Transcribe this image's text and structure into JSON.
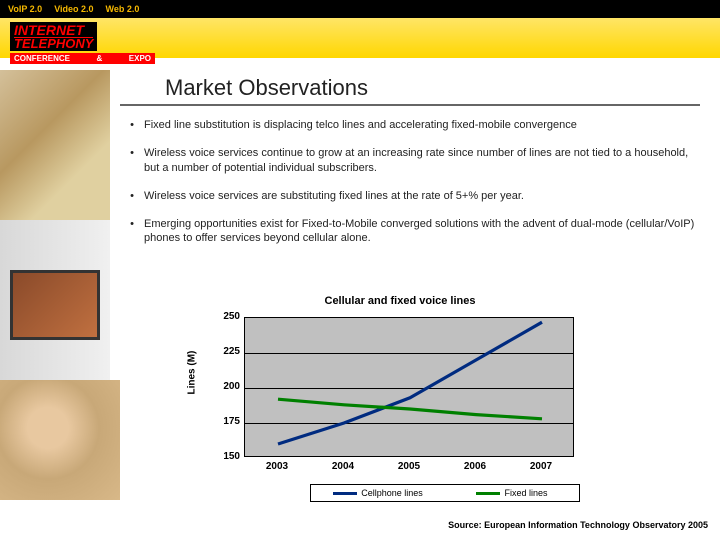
{
  "topbar": {
    "items": [
      "VoIP 2.0",
      "Video 2.0",
      "Web 2.0"
    ]
  },
  "logo": {
    "line1": "INTERNET",
    "line2": "TELEPHONY",
    "sub_left": "CONFERENCE",
    "sub_right": "EXPO"
  },
  "title": "Market Observations",
  "bullets": [
    "Fixed line substitution is displacing telco lines and accelerating fixed-mobile convergence",
    "Wireless voice services continue to grow at an increasing rate since number of lines are not tied to a household, but a number of potential individual subscribers.",
    "Wireless voice services are substituting fixed lines at the rate of 5+% per year.",
    "Emerging opportunities exist for Fixed-to-Mobile converged solutions with the advent of dual-mode (cellular/VoIP) phones to offer services beyond cellular alone."
  ],
  "chart": {
    "type": "line",
    "title": "Cellular and fixed voice lines",
    "ylabel": "Lines (M)",
    "ylim": [
      150,
      250
    ],
    "ytick_step": 25,
    "yticks": [
      150,
      175,
      200,
      225,
      250
    ],
    "categories": [
      "2003",
      "2004",
      "2005",
      "2006",
      "2007"
    ],
    "series": [
      {
        "name": "Cellphone lines",
        "color": "#002b80",
        "width": 3.2,
        "values": [
          160,
          175,
          193,
          220,
          247
        ]
      },
      {
        "name": "Fixed lines",
        "color": "#008000",
        "width": 3.2,
        "values": [
          192,
          188,
          185,
          181,
          178
        ]
      }
    ],
    "background_color": "#c0c0c0",
    "grid_color": "#000000",
    "label_fontsize": 10,
    "title_fontsize": 11
  },
  "source": "Source: European Information Technology Observatory 2005"
}
